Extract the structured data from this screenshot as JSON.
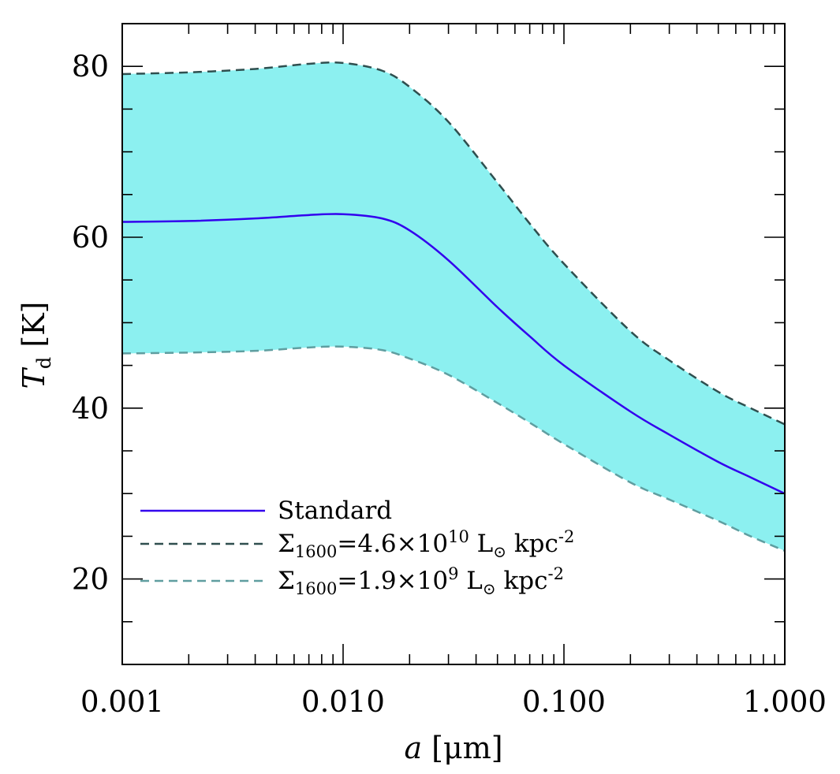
{
  "chart_data": {
    "type": "line",
    "x_scale": "log",
    "xlim": [
      0.001,
      1.0
    ],
    "ylim": [
      10,
      85
    ],
    "xlabel": {
      "var": "a",
      "rest": " [μm]"
    },
    "ylabel": {
      "var": "T",
      "sub": "d",
      "rest": " [K]"
    },
    "x_ticks": [
      {
        "value": 0.001,
        "label": "0.001"
      },
      {
        "value": 0.01,
        "label": "0.010"
      },
      {
        "value": 0.1,
        "label": "0.100"
      },
      {
        "value": 1.0,
        "label": "1.000"
      }
    ],
    "y_ticks": [
      {
        "value": 20,
        "label": "20"
      },
      {
        "value": 40,
        "label": "40"
      },
      {
        "value": 60,
        "label": "60"
      },
      {
        "value": 80,
        "label": "80"
      }
    ],
    "y_minor_step": 5,
    "x": [
      0.001,
      0.002,
      0.004,
      0.007,
      0.01,
      0.015,
      0.02,
      0.03,
      0.05,
      0.07,
      0.1,
      0.2,
      0.3,
      0.5,
      0.7,
      1.0
    ],
    "series": [
      {
        "name": "Standard",
        "color": "#3300ee",
        "dash": "solid",
        "values": [
          61.8,
          61.9,
          62.2,
          62.6,
          62.7,
          62.2,
          60.8,
          57.3,
          51.8,
          48.4,
          45.0,
          39.6,
          36.9,
          33.7,
          31.9,
          30.0
        ]
      },
      {
        "name": "upper",
        "color": "#2f4f4f",
        "dash": "dashed",
        "values": [
          79.1,
          79.3,
          79.7,
          80.3,
          80.4,
          79.5,
          77.6,
          73.5,
          66.4,
          61.6,
          56.9,
          49.0,
          45.6,
          41.9,
          40.0,
          38.1
        ]
      },
      {
        "name": "lower",
        "color": "#5f9ea0",
        "dash": "dashed",
        "values": [
          46.4,
          46.5,
          46.7,
          47.1,
          47.2,
          46.8,
          45.8,
          43.9,
          40.6,
          38.3,
          35.8,
          31.3,
          29.3,
          26.8,
          25.0,
          23.3
        ]
      }
    ],
    "band_fill_color": "#8cf0f0",
    "legend": {
      "position": "lower-left",
      "entries": [
        {
          "series": "Standard",
          "label": "Standard"
        },
        {
          "series": "upper",
          "sigma": "Σ",
          "sub": "1600",
          "text": "=4.6×10",
          "sup": "10",
          "unit": " L",
          "sun": "⊙",
          "unit2": " kpc",
          "sup2": "-2"
        },
        {
          "series": "lower",
          "sigma": "Σ",
          "sub": "1600",
          "text": "=1.9×10",
          "sup": "9",
          "unit": " L",
          "sun": "⊙",
          "unit2": " kpc",
          "sup2": "-2"
        }
      ]
    }
  }
}
